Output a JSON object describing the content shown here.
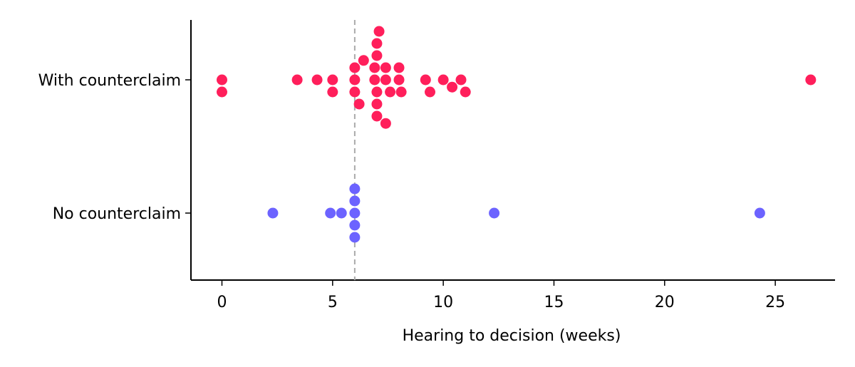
{
  "chart_data": {
    "type": "scatter",
    "title": "",
    "xlabel": "Hearing to decision (weeks)",
    "ylabel": "",
    "xlim": [
      -1.4,
      27.7
    ],
    "xticks": [
      0,
      5,
      10,
      15,
      20,
      25
    ],
    "categories": [
      "With counterclaim",
      "No counterclaim"
    ],
    "reference_line": {
      "x": 6,
      "style": "dashed",
      "color": "#aaaaaa"
    },
    "grid": false,
    "series": [
      {
        "name": "With counterclaim",
        "color": "#ff1f5b",
        "points": [
          {
            "x": 7.1,
            "offset": 4
          },
          {
            "x": 7.0,
            "offset": 3
          },
          {
            "x": 7.0,
            "offset": 2
          },
          {
            "x": 6.4,
            "offset": 1.6
          },
          {
            "x": 6.0,
            "offset": 1
          },
          {
            "x": 6.9,
            "offset": 1
          },
          {
            "x": 7.4,
            "offset": 1
          },
          {
            "x": 8.0,
            "offset": 1
          },
          {
            "x": 0.0,
            "offset": 0
          },
          {
            "x": 3.4,
            "offset": 0
          },
          {
            "x": 4.3,
            "offset": 0
          },
          {
            "x": 5.0,
            "offset": 0
          },
          {
            "x": 6.0,
            "offset": 0
          },
          {
            "x": 6.9,
            "offset": 0
          },
          {
            "x": 7.4,
            "offset": 0
          },
          {
            "x": 8.0,
            "offset": 0
          },
          {
            "x": 9.2,
            "offset": 0
          },
          {
            "x": 10.0,
            "offset": 0
          },
          {
            "x": 10.8,
            "offset": 0
          },
          {
            "x": 26.6,
            "offset": 0
          },
          {
            "x": 0.0,
            "offset": -1
          },
          {
            "x": 5.0,
            "offset": -1
          },
          {
            "x": 6.0,
            "offset": -1
          },
          {
            "x": 7.0,
            "offset": -1
          },
          {
            "x": 7.6,
            "offset": -1
          },
          {
            "x": 8.1,
            "offset": -1
          },
          {
            "x": 9.4,
            "offset": -1
          },
          {
            "x": 10.4,
            "offset": -0.6
          },
          {
            "x": 11.0,
            "offset": -1
          },
          {
            "x": 6.2,
            "offset": -2
          },
          {
            "x": 7.0,
            "offset": -2
          },
          {
            "x": 7.0,
            "offset": -3
          },
          {
            "x": 7.4,
            "offset": -3.6
          }
        ]
      },
      {
        "name": "No counterclaim",
        "color": "#6c63ff",
        "points": [
          {
            "x": 6.0,
            "offset": 2
          },
          {
            "x": 6.0,
            "offset": 1
          },
          {
            "x": 2.3,
            "offset": 0
          },
          {
            "x": 4.9,
            "offset": 0
          },
          {
            "x": 5.4,
            "offset": 0
          },
          {
            "x": 6.0,
            "offset": 0
          },
          {
            "x": 12.3,
            "offset": 0
          },
          {
            "x": 24.3,
            "offset": 0
          },
          {
            "x": 6.0,
            "offset": -1
          },
          {
            "x": 6.0,
            "offset": -2
          }
        ]
      }
    ]
  }
}
